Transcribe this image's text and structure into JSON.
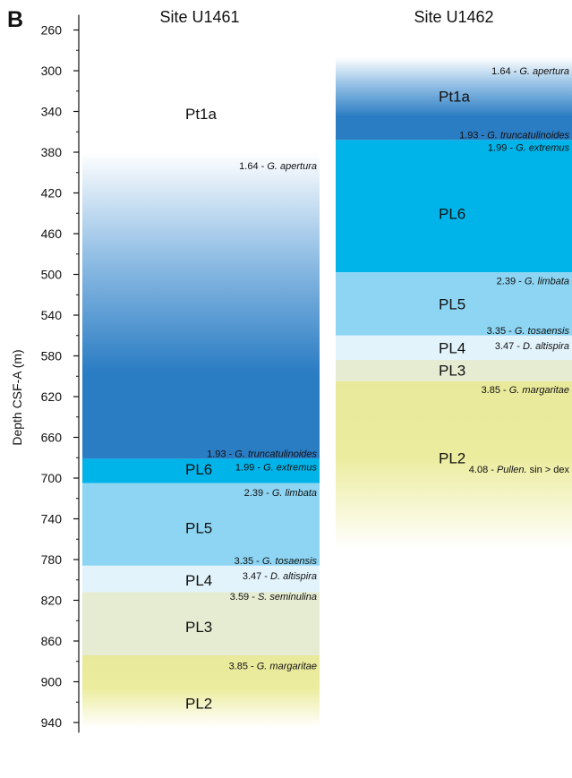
{
  "panel_label": "B",
  "y_axis": {
    "label": "Depth CSF-A (m)",
    "min": 245,
    "max": 950,
    "major_ticks": [
      260,
      300,
      340,
      380,
      420,
      460,
      500,
      540,
      580,
      620,
      660,
      700,
      740,
      780,
      820,
      860,
      900,
      940
    ]
  },
  "colors": {
    "pt1a_light": "#ffffff",
    "pt1a_dark": "#2a7cc3",
    "pl6": "#00b4e9",
    "pl5": "#8dd5f3",
    "pl4": "#e2f3fb",
    "pl3": "#e5ecd2",
    "pl2": "#e9e99c"
  },
  "columns": [
    {
      "title": "Site U1461",
      "zones": [
        {
          "name": "Pt1a",
          "top": 380,
          "bottom": 681,
          "fill": "pt1a",
          "label_depth": 342
        },
        {
          "name": "PL6",
          "top": 681,
          "bottom": 705,
          "fill": "pl6",
          "label_depth": 691
        },
        {
          "name": "PL5",
          "top": 705,
          "bottom": 786,
          "fill": "pl5",
          "label_depth": 749
        },
        {
          "name": "PL4",
          "top": 786,
          "bottom": 812,
          "fill": "pl4",
          "label_depth": 800
        },
        {
          "name": "PL3",
          "top": 812,
          "bottom": 874,
          "fill": "pl3",
          "label_depth": 846
        },
        {
          "name": "PL2",
          "top": 874,
          "bottom": 945,
          "fill": "pl2_fade",
          "label_depth": 921
        }
      ],
      "events": [
        {
          "age": "1.64 -",
          "taxon": "G. apertura",
          "depth": 393
        },
        {
          "age": "1.93 -",
          "taxon": "G. truncatulinoides",
          "depth": 676
        },
        {
          "age": "1.99 -",
          "taxon": "G. extremus",
          "depth": 689
        },
        {
          "age": "2.39 -",
          "taxon": "G. limbata",
          "depth": 714
        },
        {
          "age": "3.35 -",
          "taxon": "G. tosaensis",
          "depth": 781
        },
        {
          "age": "3.47 -",
          "taxon": "D. altispira",
          "depth": 796
        },
        {
          "age": "3.59 -",
          "taxon": "S. seminulina",
          "depth": 816
        },
        {
          "age": "3.85 -",
          "taxon": "G. margaritae",
          "depth": 884
        }
      ]
    },
    {
      "title": "Site U1462",
      "zones": [
        {
          "name": "Pt1a",
          "top": 287,
          "bottom": 368,
          "fill": "pt1a",
          "label_depth": 325
        },
        {
          "name": "PL6",
          "top": 368,
          "bottom": 498,
          "fill": "pl6",
          "label_depth": 440
        },
        {
          "name": "PL5",
          "top": 498,
          "bottom": 560,
          "fill": "pl5",
          "label_depth": 529
        },
        {
          "name": "PL4",
          "top": 560,
          "bottom": 584,
          "fill": "pl4",
          "label_depth": 572
        },
        {
          "name": "PL3",
          "top": 584,
          "bottom": 605,
          "fill": "pl3",
          "label_depth": 594
        },
        {
          "name": "PL2",
          "top": 605,
          "bottom": 770,
          "fill": "pl2_fade",
          "label_depth": 680
        }
      ],
      "events": [
        {
          "age": "1.64 -",
          "taxon": "G. apertura",
          "depth": 300
        },
        {
          "age": "1.93 -",
          "taxon": "G. truncatulinoides",
          "depth": 363
        },
        {
          "age": "1.99 -",
          "taxon": "G. extremus",
          "depth": 375
        },
        {
          "age": "2.39 -",
          "taxon": "G. limbata",
          "depth": 506
        },
        {
          "age": "3.35 -",
          "taxon": "G. tosaensis",
          "depth": 555
        },
        {
          "age": "3.47 -",
          "taxon": "D. altispira",
          "depth": 570
        },
        {
          "age": "3.85 -",
          "taxon": "G. margaritae",
          "depth": 613
        },
        {
          "age": "4.08 -",
          "taxon": "Pullen.",
          "suffix": "sin > dex",
          "depth": 691
        }
      ]
    }
  ]
}
